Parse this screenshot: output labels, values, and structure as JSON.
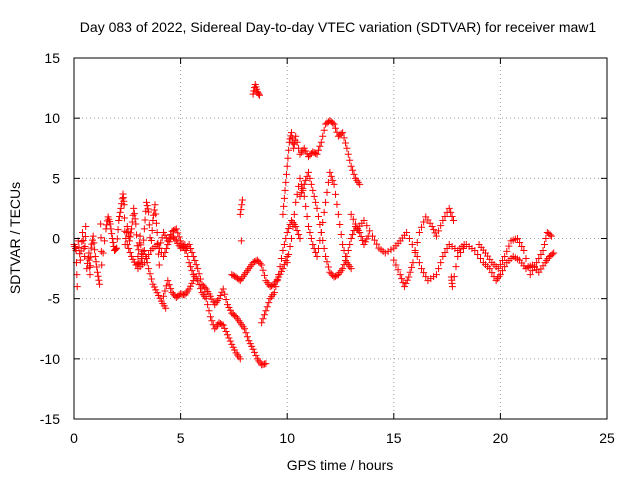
{
  "chart_data": {
    "type": "scatter",
    "title": "Day 083 of 2022, Sidereal Day-to-day VTEC variation (SDTVAR) for receiver maw1",
    "xlabel": "GPS time / hours",
    "ylabel": "SDTVAR / TECUs",
    "xlim": [
      0,
      25
    ],
    "ylim": [
      -15,
      15
    ],
    "xticks": [
      "0",
      "5",
      "10",
      "15",
      "20",
      "25"
    ],
    "yticks": [
      "-15",
      "-10",
      "-5",
      "0",
      "5",
      "10",
      "15"
    ],
    "grid": true,
    "marker": "+",
    "series": [
      {
        "name": "SDTVAR",
        "color": "#ff0000",
        "points": [
          [
            0.0,
            -0.5
          ],
          [
            0.1,
            -1.0
          ],
          [
            0.15,
            -4.0
          ],
          [
            0.2,
            -0.2
          ],
          [
            0.3,
            -1.8
          ],
          [
            0.4,
            0.5
          ],
          [
            0.5,
            -1.5
          ],
          [
            0.55,
            1.0
          ],
          [
            0.6,
            -2.5
          ],
          [
            0.7,
            -1.2
          ],
          [
            0.75,
            -3.0
          ],
          [
            0.8,
            -0.8
          ],
          [
            0.9,
            0.2
          ],
          [
            1.0,
            -1.5
          ],
          [
            1.1,
            -2.8
          ],
          [
            1.2,
            -3.8
          ],
          [
            1.25,
            1.2
          ],
          [
            1.3,
            -2.2
          ],
          [
            1.5,
            0.8
          ],
          [
            1.6,
            1.8
          ],
          [
            1.7,
            1.2
          ],
          [
            1.8,
            0.0
          ],
          [
            1.9,
            -1.0
          ],
          [
            2.0,
            -0.8
          ],
          [
            2.1,
            1.5
          ],
          [
            2.2,
            2.5
          ],
          [
            2.3,
            3.7
          ],
          [
            2.35,
            2.8
          ],
          [
            2.4,
            -0.5
          ],
          [
            2.5,
            1.0
          ],
          [
            2.6,
            -0.2
          ],
          [
            2.7,
            0.8
          ],
          [
            2.8,
            2.5
          ],
          [
            2.9,
            1.2
          ],
          [
            3.0,
            -1.5
          ],
          [
            3.1,
            0.2
          ],
          [
            3.2,
            -2.0
          ],
          [
            3.3,
            0.8
          ],
          [
            3.4,
            3.0
          ],
          [
            3.5,
            2.2
          ],
          [
            3.6,
            -1.0
          ],
          [
            3.7,
            1.5
          ],
          [
            3.8,
            2.8
          ],
          [
            3.9,
            0.5
          ],
          [
            4.0,
            -2.2
          ],
          [
            2.5,
            -0.5
          ],
          [
            2.7,
            -1.5
          ],
          [
            2.9,
            -2.2
          ],
          [
            3.1,
            -2.0
          ],
          [
            3.3,
            -1.0
          ],
          [
            3.5,
            -2.5
          ],
          [
            3.7,
            -3.8
          ],
          [
            3.9,
            -4.5
          ],
          [
            4.1,
            -5.2
          ],
          [
            4.3,
            -5.8
          ],
          [
            4.2,
            -4.8
          ],
          [
            4.4,
            -3.5
          ],
          [
            4.6,
            -4.5
          ],
          [
            4.8,
            -4.9
          ],
          [
            5.0,
            -4.6
          ],
          [
            5.2,
            -4.7
          ],
          [
            5.4,
            -4.2
          ],
          [
            5.6,
            -3.5
          ],
          [
            3.0,
            -2.5
          ],
          [
            3.3,
            -2.0
          ],
          [
            3.6,
            -1.0
          ],
          [
            3.9,
            -0.5
          ],
          [
            4.2,
            -1.5
          ],
          [
            4.4,
            -0.5
          ],
          [
            4.6,
            0.2
          ],
          [
            4.8,
            -0.2
          ],
          [
            5.0,
            -0.8
          ],
          [
            5.2,
            -0.5
          ],
          [
            5.4,
            -2.0
          ],
          [
            5.6,
            -3.0
          ],
          [
            5.8,
            -3.5
          ],
          [
            6.0,
            -4.5
          ],
          [
            6.2,
            -5.0
          ],
          [
            6.4,
            -6.5
          ],
          [
            6.6,
            -7.5
          ],
          [
            6.8,
            -7.0
          ],
          [
            7.0,
            -7.2
          ],
          [
            7.2,
            -8.0
          ],
          [
            7.4,
            -8.8
          ],
          [
            7.6,
            -9.5
          ],
          [
            7.8,
            -10.0
          ],
          [
            4.0,
            -0.8
          ],
          [
            4.2,
            0.5
          ],
          [
            4.4,
            -0.2
          ],
          [
            4.6,
            0.6
          ],
          [
            4.8,
            0.8
          ],
          [
            5.0,
            -0.2
          ],
          [
            5.2,
            -1.0
          ],
          [
            5.4,
            -0.5
          ],
          [
            5.6,
            -1.5
          ],
          [
            5.8,
            -2.5
          ],
          [
            6.0,
            -3.8
          ],
          [
            6.2,
            -4.2
          ],
          [
            6.4,
            -4.8
          ],
          [
            6.6,
            -5.5
          ],
          [
            6.8,
            -5.0
          ],
          [
            7.0,
            -4.2
          ],
          [
            7.2,
            -5.5
          ],
          [
            7.4,
            -6.2
          ],
          [
            7.6,
            -6.5
          ],
          [
            7.8,
            -7.0
          ],
          [
            8.0,
            -7.5
          ],
          [
            8.2,
            -8.5
          ],
          [
            8.4,
            -9.2
          ],
          [
            8.6,
            -10.0
          ],
          [
            8.8,
            -10.5
          ],
          [
            9.0,
            -10.4
          ],
          [
            7.4,
            -3.0
          ],
          [
            7.6,
            -3.2
          ],
          [
            7.8,
            -3.5
          ],
          [
            8.0,
            -3.0
          ],
          [
            8.2,
            -2.5
          ],
          [
            8.4,
            -2.0
          ],
          [
            8.6,
            -1.8
          ],
          [
            8.8,
            -2.2
          ],
          [
            9.0,
            -3.5
          ],
          [
            9.2,
            -4.0
          ],
          [
            9.4,
            -3.8
          ],
          [
            9.6,
            -3.2
          ],
          [
            9.8,
            -2.5
          ],
          [
            10.0,
            -1.5
          ],
          [
            7.8,
            2.0
          ],
          [
            7.9,
            3.2
          ],
          [
            7.85,
            -0.2
          ],
          [
            8.4,
            12.0
          ],
          [
            8.5,
            12.8
          ],
          [
            8.6,
            12.2
          ],
          [
            8.7,
            11.9
          ],
          [
            8.8,
            -7.0
          ],
          [
            9.0,
            -6.0
          ],
          [
            9.2,
            -5.0
          ],
          [
            9.4,
            -4.5
          ],
          [
            9.6,
            -3.0
          ],
          [
            9.8,
            -1.0
          ],
          [
            10.0,
            0.5
          ],
          [
            10.2,
            1.5
          ],
          [
            10.4,
            1.0
          ],
          [
            10.6,
            0.0
          ],
          [
            9.8,
            2.0
          ],
          [
            9.9,
            4.0
          ],
          [
            10.0,
            6.0
          ],
          [
            10.1,
            8.0
          ],
          [
            10.2,
            8.8
          ],
          [
            10.3,
            7.5
          ],
          [
            10.4,
            8.5
          ],
          [
            10.6,
            7.0
          ],
          [
            10.8,
            7.5
          ],
          [
            11.0,
            6.8
          ],
          [
            11.2,
            7.2
          ],
          [
            11.4,
            7.0
          ],
          [
            11.6,
            8.0
          ],
          [
            11.8,
            9.5
          ],
          [
            12.0,
            9.8
          ],
          [
            12.2,
            9.5
          ],
          [
            12.4,
            8.5
          ],
          [
            12.6,
            8.8
          ],
          [
            12.8,
            7.5
          ],
          [
            13.0,
            6.0
          ],
          [
            13.2,
            5.0
          ],
          [
            13.4,
            4.5
          ],
          [
            10.0,
            -2.0
          ],
          [
            10.2,
            0.0
          ],
          [
            10.4,
            3.0
          ],
          [
            10.6,
            5.0
          ],
          [
            10.8,
            3.5
          ],
          [
            11.0,
            1.0
          ],
          [
            11.2,
            -0.5
          ],
          [
            11.4,
            -1.5
          ],
          [
            11.6,
            0.5
          ],
          [
            11.8,
            3.0
          ],
          [
            12.0,
            5.5
          ],
          [
            12.2,
            4.5
          ],
          [
            12.4,
            2.0
          ],
          [
            12.6,
            -0.5
          ],
          [
            12.8,
            -2.0
          ],
          [
            13.0,
            -2.5
          ],
          [
            10.6,
            3.5
          ],
          [
            10.8,
            4.5
          ],
          [
            11.0,
            5.5
          ],
          [
            11.2,
            4.0
          ],
          [
            11.4,
            2.5
          ],
          [
            11.6,
            0.5
          ],
          [
            11.8,
            -1.5
          ],
          [
            12.0,
            -2.8
          ],
          [
            12.2,
            -3.2
          ],
          [
            12.4,
            -3.0
          ],
          [
            12.6,
            -2.5
          ],
          [
            12.8,
            -1.5
          ],
          [
            13.0,
            0.0
          ],
          [
            13.2,
            1.0
          ],
          [
            13.4,
            0.5
          ],
          [
            13.6,
            -0.5
          ],
          [
            13.8,
            0.2
          ],
          [
            13.0,
            2.0
          ],
          [
            13.3,
            0.8
          ],
          [
            13.6,
            1.5
          ],
          [
            14.0,
            0.2
          ],
          [
            14.3,
            -0.8
          ],
          [
            14.6,
            -1.2
          ],
          [
            15.0,
            -0.8
          ],
          [
            15.3,
            -0.2
          ],
          [
            15.6,
            0.5
          ],
          [
            16.0,
            -1.0
          ],
          [
            16.3,
            -2.5
          ],
          [
            16.6,
            -3.5
          ],
          [
            17.0,
            -3.0
          ],
          [
            17.3,
            -1.5
          ],
          [
            17.6,
            -0.5
          ],
          [
            18.0,
            -1.0
          ],
          [
            18.3,
            -0.5
          ],
          [
            15.0,
            -1.8
          ],
          [
            15.3,
            -3.0
          ],
          [
            15.5,
            -4.0
          ],
          [
            15.7,
            -3.2
          ],
          [
            15.9,
            -2.0
          ],
          [
            16.2,
            0.5
          ],
          [
            16.5,
            1.8
          ],
          [
            16.8,
            1.0
          ],
          [
            17.0,
            0.2
          ],
          [
            17.3,
            1.5
          ],
          [
            17.6,
            2.5
          ],
          [
            17.8,
            1.5
          ],
          [
            17.7,
            -3.2
          ],
          [
            17.75,
            -4.0
          ],
          [
            18.0,
            -1.5
          ],
          [
            18.4,
            -0.5
          ],
          [
            18.8,
            -1.0
          ],
          [
            19.2,
            -2.0
          ],
          [
            19.5,
            -2.5
          ],
          [
            19.8,
            -3.5
          ],
          [
            20.0,
            -3.0
          ],
          [
            20.3,
            -2.0
          ],
          [
            20.6,
            -1.5
          ],
          [
            20.9,
            -1.8
          ],
          [
            21.2,
            -2.5
          ],
          [
            21.5,
            -2.2
          ],
          [
            21.8,
            -2.8
          ],
          [
            22.1,
            -2.0
          ],
          [
            22.3,
            -1.5
          ],
          [
            22.5,
            -1.2
          ],
          [
            19.0,
            -0.5
          ],
          [
            19.3,
            -1.2
          ],
          [
            19.6,
            -2.0
          ],
          [
            19.9,
            -2.5
          ],
          [
            20.2,
            -1.5
          ],
          [
            20.5,
            -0.2
          ],
          [
            20.8,
            0.0
          ],
          [
            21.1,
            -1.0
          ],
          [
            21.4,
            -3.0
          ],
          [
            21.7,
            -2.0
          ],
          [
            22.0,
            -1.0
          ],
          [
            22.2,
            0.5
          ],
          [
            22.4,
            0.2
          ]
        ]
      }
    ]
  }
}
